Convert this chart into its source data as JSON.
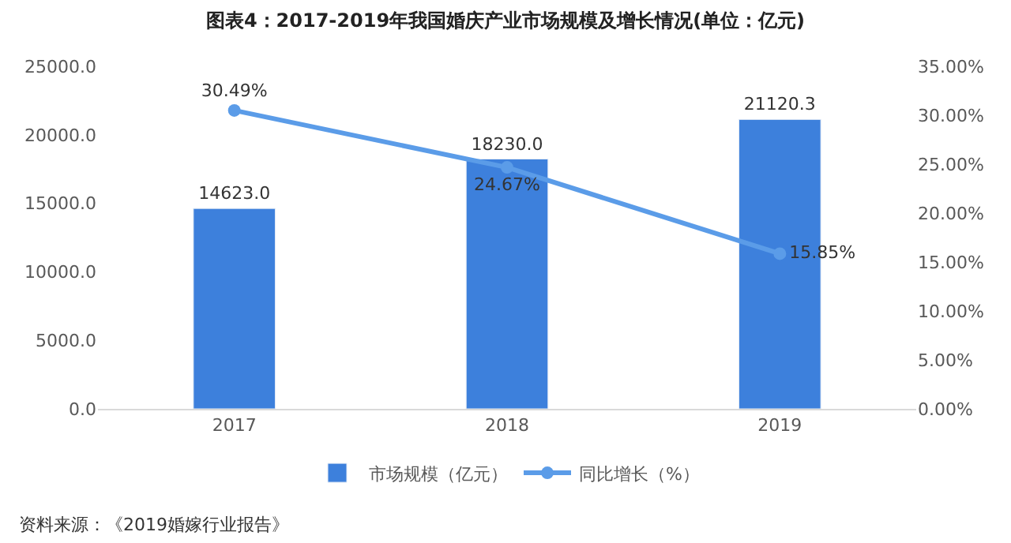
{
  "chart_data": {
    "type": "bar",
    "title": "图表4：2017-2019年我国婚庆产业市场规模及增长情况(单位：亿元)",
    "categories": [
      "2017",
      "2018",
      "2019"
    ],
    "series": [
      {
        "name": "市场规模（亿元）",
        "color": "#3d80dc",
        "values": [
          14623.0,
          18230.0,
          21120.3
        ],
        "value_labels": [
          "14623.0",
          "18230.0",
          "21120.3"
        ]
      },
      {
        "name": "同比增长（%）",
        "type": "line",
        "axis": "y2",
        "color": "#5b9ce8",
        "marker": "circle",
        "values": [
          30.49,
          24.67,
          15.85
        ],
        "value_labels": [
          "30.49%",
          "24.67%",
          "15.85%"
        ]
      }
    ],
    "ylim": [
      0,
      25000
    ],
    "yticks": [
      {
        "value": 0,
        "label": "0.0"
      },
      {
        "value": 5000,
        "label": "5000.0"
      },
      {
        "value": 10000,
        "label": "10000.0"
      },
      {
        "value": 15000,
        "label": "15000.0"
      },
      {
        "value": 20000,
        "label": "20000.0"
      },
      {
        "value": 25000,
        "label": "25000.0"
      }
    ],
    "y2lim": [
      0,
      35
    ],
    "y2ticks": [
      {
        "value": 0,
        "label": "0.00%"
      },
      {
        "value": 5,
        "label": "5.00%"
      },
      {
        "value": 10,
        "label": "10.00%"
      },
      {
        "value": 15,
        "label": "15.00%"
      },
      {
        "value": 20,
        "label": "20.00%"
      },
      {
        "value": 25,
        "label": "25.00%"
      },
      {
        "value": 30,
        "label": "30.00%"
      },
      {
        "value": 35,
        "label": "35.00%"
      }
    ],
    "legend": "bottom",
    "annotations": [
      "资料来源：《2019婚嫁行业报告》"
    ]
  }
}
